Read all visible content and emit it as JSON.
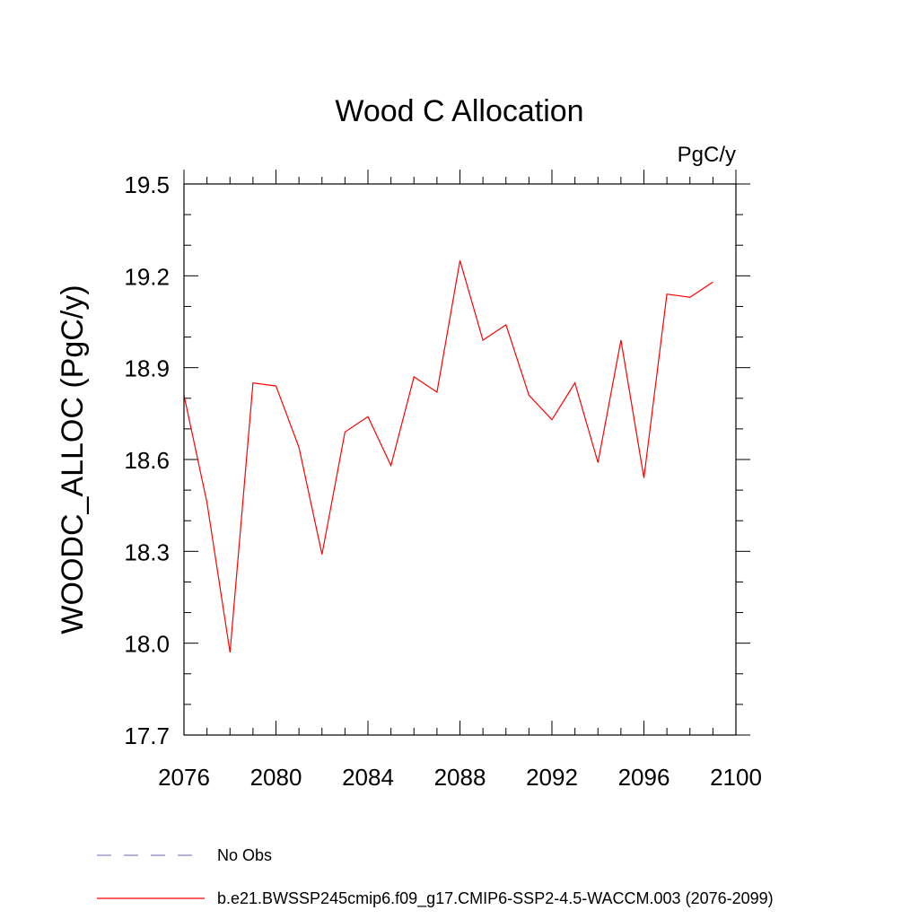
{
  "chart_data": {
    "type": "line",
    "title": "Wood C Allocation",
    "units_label": "PgC/y",
    "ylabel": "WOODC_ALLOC  (PgC/y)",
    "xlabel": "",
    "xlim": [
      2076,
      2100
    ],
    "ylim": [
      17.7,
      19.5
    ],
    "x_major_ticks": [
      2076,
      2080,
      2084,
      2088,
      2092,
      2096,
      2100
    ],
    "x_minor_step": 1,
    "y_major_ticks": [
      17.7,
      18.0,
      18.3,
      18.6,
      18.9,
      19.2,
      19.5
    ],
    "y_tick_labels": [
      "17.7",
      "18.0",
      "18.3",
      "18.6",
      "18.9",
      "19.2",
      "19.5"
    ],
    "y_minor_step": 0.1,
    "grid": false,
    "legend_position": "bottom",
    "series": [
      {
        "name": "b.e21.BWSSP245cmip6.f09_g17.CMIP6-SSP2-4.5-WACCM.003 (2076-2099)",
        "color": "#ff0000",
        "dash": "solid",
        "x": [
          2076,
          2077,
          2078,
          2079,
          2080,
          2081,
          2082,
          2083,
          2084,
          2085,
          2086,
          2087,
          2088,
          2089,
          2090,
          2091,
          2092,
          2093,
          2094,
          2095,
          2096,
          2097,
          2098,
          2099
        ],
        "values": [
          18.81,
          18.46,
          17.97,
          18.85,
          18.84,
          18.64,
          18.29,
          18.69,
          18.74,
          18.58,
          18.87,
          18.82,
          19.25,
          18.99,
          19.04,
          18.81,
          18.73,
          18.85,
          18.59,
          18.99,
          18.54,
          19.14,
          19.13,
          19.18
        ]
      }
    ],
    "legend": [
      {
        "label": "No Obs",
        "color": "#8f7fbf",
        "dash": "dashed"
      },
      {
        "label": "b.e21.BWSSP245cmip6.f09_g17.CMIP6-SSP2-4.5-WACCM.003 (2076-2099)",
        "color": "#ff0000",
        "dash": "solid"
      }
    ]
  }
}
